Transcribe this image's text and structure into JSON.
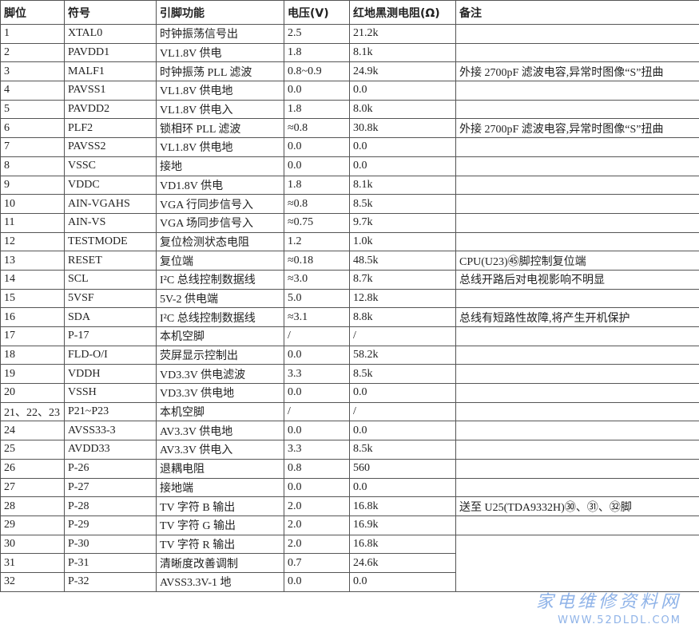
{
  "table": {
    "header": [
      "脚位",
      "符号",
      "引脚功能",
      "电压(V)",
      "红地黑测电阻(Ω)",
      "备注"
    ],
    "rows": [
      {
        "pin": "1",
        "symbol": "XTAL0",
        "function": "时钟振荡信号出",
        "voltage": "2.5",
        "resistance": "21.2k"
      },
      {
        "pin": "2",
        "symbol": "PAVDD1",
        "function": "VL1.8V 供电",
        "voltage": "1.8",
        "resistance": "8.1k"
      },
      {
        "pin": "3",
        "symbol": "MALF1",
        "function": "时钟振荡 PLL 滤波",
        "voltage": "0.8~0.9",
        "resistance": "24.9k",
        "note": "外接 2700pF 滤波电容,异常时图像“S”扭曲"
      },
      {
        "pin": "4",
        "symbol": "PAVSS1",
        "function": "VL1.8V 供电地",
        "voltage": "0.0",
        "resistance": "0.0"
      },
      {
        "pin": "5",
        "symbol": "PAVDD2",
        "function": "VL1.8V 供电入",
        "voltage": "1.8",
        "resistance": "8.0k"
      },
      {
        "pin": "6",
        "symbol": "PLF2",
        "function": "锁相环 PLL 滤波",
        "voltage": "≈0.8",
        "resistance": "30.8k",
        "note": "外接 2700pF 滤波电容,异常时图像“S”扭曲"
      },
      {
        "pin": "7",
        "symbol": "PAVSS2",
        "function": "VL1.8V 供电地",
        "voltage": "0.0",
        "resistance": "0.0"
      },
      {
        "pin": "8",
        "symbol": "VSSC",
        "function": "接地",
        "voltage": "0.0",
        "resistance": "0.0"
      },
      {
        "pin": "9",
        "symbol": "VDDC",
        "function": "VD1.8V 供电",
        "voltage": "1.8",
        "resistance": "8.1k"
      },
      {
        "pin": "10",
        "symbol": "AIN-VGAHS",
        "function": "VGA 行同步信号入",
        "voltage": "≈0.8",
        "resistance": "8.5k"
      },
      {
        "pin": "11",
        "symbol": "AIN-VS",
        "function": "VGA 场同步信号入",
        "voltage": "≈0.75",
        "resistance": "9.7k"
      },
      {
        "pin": "12",
        "symbol": "TESTMODE",
        "function": "复位检测状态电阻",
        "voltage": "1.2",
        "resistance": "1.0k"
      },
      {
        "pin": "13",
        "symbol": "RESET",
        "function": "复位端",
        "voltage": "≈0.18",
        "resistance": "48.5k",
        "note": "CPU(U23)㊺脚控制复位端"
      },
      {
        "pin": "14",
        "symbol": "SCL",
        "function": "I²C 总线控制数据线",
        "voltage": "≈3.0",
        "resistance": "8.7k",
        "note": "总线开路后对电视影响不明显"
      },
      {
        "pin": "15",
        "symbol": "5VSF",
        "function": "5V-2 供电端",
        "voltage": "5.0",
        "resistance": "12.8k"
      },
      {
        "pin": "16",
        "symbol": "SDA",
        "function": "I²C 总线控制数据线",
        "voltage": "≈3.1",
        "resistance": "8.8k",
        "note": "总线有短路性故障,将产生开机保护"
      },
      {
        "pin": "17",
        "symbol": "P-17",
        "function": "本机空脚",
        "voltage": "/",
        "resistance": "/"
      },
      {
        "pin": "18",
        "symbol": "FLD-O/I",
        "function": "荧屏显示控制出",
        "voltage": "0.0",
        "resistance": "58.2k"
      },
      {
        "pin": "19",
        "symbol": "VDDH",
        "function": "VD3.3V 供电滤波",
        "voltage": "3.3",
        "resistance": "8.5k"
      },
      {
        "pin": "20",
        "symbol": "VSSH",
        "function": "VD3.3V 供电地",
        "voltage": "0.0",
        "resistance": "0.0"
      },
      {
        "pin": "21、22、23",
        "symbol": "P21~P23",
        "function": "本机空脚",
        "voltage": "/",
        "resistance": "/"
      },
      {
        "pin": "24",
        "symbol": "AVSS33-3",
        "function": "AV3.3V 供电地",
        "voltage": "0.0",
        "resistance": "0.0"
      },
      {
        "pin": "25",
        "symbol": "AVDD33",
        "function": "AV3.3V 供电入",
        "voltage": "3.3",
        "resistance": "8.5k"
      },
      {
        "pin": "26",
        "symbol": "P-26",
        "function": "退耦电阻",
        "voltage": "0.8",
        "resistance": "560"
      },
      {
        "pin": "27",
        "symbol": "P-27",
        "function": "接地端",
        "voltage": "0.0",
        "resistance": "0.0"
      },
      {
        "pin": "28",
        "symbol": "P-28",
        "function": "TV 字符 B 输出",
        "voltage": "2.0",
        "resistance": "16.8k",
        "note": "送至 U25(TDA9332H)㉚、㉛、㉜脚"
      },
      {
        "pin": "29",
        "symbol": "P-29",
        "function": "TV 字符 G 输出",
        "voltage": "2.0",
        "resistance": "16.9k"
      },
      {
        "pin": "30",
        "symbol": "P-30",
        "function": "TV 字符 R 输出",
        "voltage": "2.0",
        "resistance": "16.8k"
      },
      {
        "pin": "31",
        "symbol": "P-31",
        "function": "清晰度改善调制",
        "voltage": "0.7",
        "resistance": "24.6k"
      },
      {
        "pin": "32",
        "symbol": "P-32",
        "function": "AVSS3.3V-1 地",
        "voltage": "0.0",
        "resistance": "0.0"
      }
    ]
  },
  "watermark": {
    "title": "家电维修资料网",
    "url": "www.52dldl.com"
  }
}
